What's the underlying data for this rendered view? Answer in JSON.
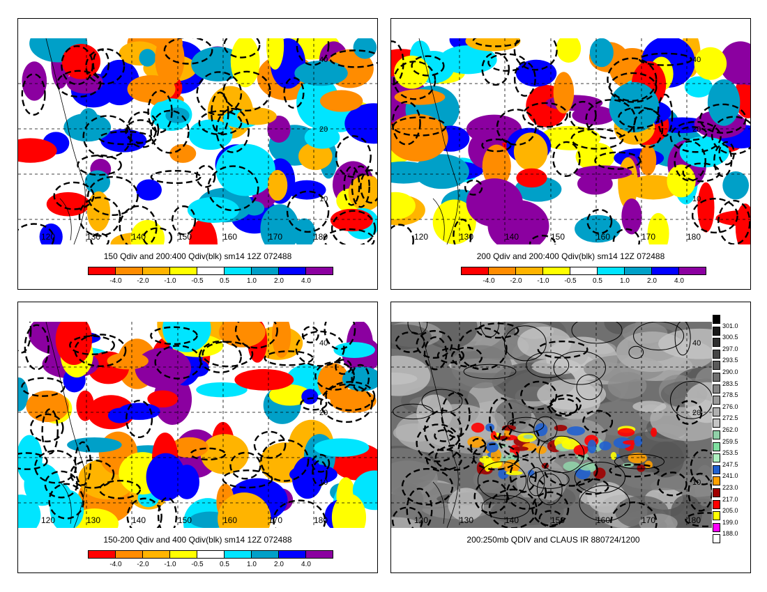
{
  "panels": [
    {
      "title": "150 Qdiv and 200:400 Qdiv(blk) sm14 12Z 072488",
      "colorbar": true
    },
    {
      "title": "200 Qdiv and 200:400 Qdiv(blk) sm14 12Z 072488",
      "colorbar": true
    },
    {
      "title": "150-200 Qdiv and 400 Qdiv(blk) sm14 12Z 072488",
      "colorbar": true
    },
    {
      "title": "200:250mb QDIV and CLAUS IR 880724/1200",
      "colorbar": false
    }
  ],
  "colorbar": {
    "colors": [
      "#ff0000",
      "#ff8c00",
      "#ffb400",
      "#ffff00",
      "#ffffff",
      "#00e5ff",
      "#00a0c8",
      "#0000ff",
      "#8b00a0"
    ],
    "labels": [
      "-4.0",
      "-2.0",
      "-1.0",
      "-0.5",
      "0.5",
      "1.0",
      "2.0",
      "4.0"
    ]
  },
  "axes": {
    "lon_labels": [
      "120",
      "130",
      "140",
      "150",
      "160",
      "170",
      "180"
    ],
    "lat_labels": [
      "10",
      "20",
      "40"
    ]
  },
  "ir_scale": {
    "labels": [
      "301.0",
      "300.5",
      "297.0",
      "293.5",
      "290.0",
      "283.5",
      "278.5",
      "276.0",
      "272.5",
      "262.0",
      "259.5",
      "253.5",
      "247.5",
      "241.0",
      "223.0",
      "217.0",
      "205.0",
      "199.0",
      "188.0"
    ],
    "colors": [
      "#000000",
      "#1a1a1a",
      "#303030",
      "#454545",
      "#5a5a5a",
      "#707070",
      "#858585",
      "#9a9a9a",
      "#b0b0b0",
      "#c5c5c5",
      "#90d0a8",
      "#7fe0a0",
      "#aef0c0",
      "#2060d0",
      "#ffa000",
      "#a00000",
      "#ff0000",
      "#ffff00",
      "#ff00ff",
      "#ffffff"
    ]
  }
}
